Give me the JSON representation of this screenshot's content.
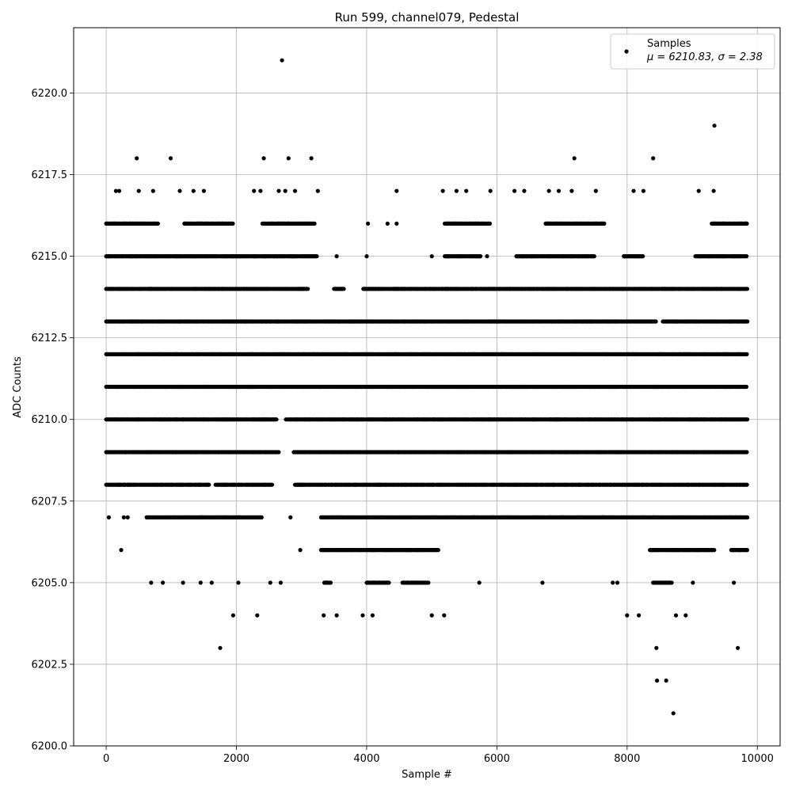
{
  "chart_data": {
    "type": "scatter",
    "title": "Run 599, channel079, Pedestal",
    "xlabel": "Sample #",
    "ylabel": "ADC Counts",
    "xlim": [
      -500,
      10350
    ],
    "ylim": [
      6200,
      6222
    ],
    "x_ticks": [
      0,
      2000,
      4000,
      6000,
      8000,
      10000
    ],
    "y_ticks": [
      6200.0,
      6202.5,
      6205.0,
      6207.5,
      6210.0,
      6212.5,
      6215.0,
      6217.5,
      6220.0
    ],
    "x_tick_labels": [
      "0",
      "2000",
      "4000",
      "6000",
      "8000",
      "10000"
    ],
    "y_tick_labels": [
      "6200.0",
      "6202.5",
      "6205.0",
      "6207.5",
      "6210.0",
      "6212.5",
      "6215.0",
      "6217.5",
      "6220.0"
    ],
    "grid": true,
    "legend": {
      "placement": "top-right",
      "entries": [
        {
          "label": "Samples",
          "stats": "μ = 6210.83, σ = 2.38"
        }
      ]
    },
    "series": [
      {
        "name": "Samples",
        "color": "#000000",
        "marker": "circle",
        "n_samples": 9850,
        "levels": [
          {
            "y": 6210,
            "ranges": [
              [
                0,
                2620
              ],
              [
                2760,
                9850
              ]
            ]
          },
          {
            "y": 6211,
            "ranges": [
              [
                0,
                9850
              ]
            ]
          },
          {
            "y": 6212,
            "ranges": [
              [
                0,
                9850
              ]
            ]
          },
          {
            "y": 6209,
            "ranges": [
              [
                0,
                2650
              ],
              [
                2880,
                9850
              ]
            ]
          },
          {
            "y": 6213,
            "ranges": [
              [
                0,
                8450
              ],
              [
                8550,
                9850
              ]
            ]
          },
          {
            "y": 6208,
            "ranges": [
              [
                0,
                1580
              ],
              [
                1680,
                2550
              ],
              [
                2900,
                9850
              ]
            ]
          },
          {
            "y": 6214,
            "ranges": [
              [
                0,
                3100
              ],
              [
                3500,
                3650
              ],
              [
                3950,
                9850
              ]
            ]
          },
          {
            "y": 6207,
            "ranges": [
              [
                620,
                2400
              ],
              [
                3300,
                9850
              ]
            ]
          },
          {
            "y": 6215,
            "ranges": [
              [
                0,
                3250
              ],
              [
                5200,
                5750
              ],
              [
                6300,
                7500
              ],
              [
                7950,
                8250
              ],
              [
                9050,
                9850
              ]
            ]
          },
          {
            "y": 6206,
            "ranges": [
              [
                3300,
                5100
              ],
              [
                8350,
                9350
              ],
              [
                9600,
                9850
              ]
            ]
          },
          {
            "y": 6216,
            "ranges": [
              [
                0,
                800
              ],
              [
                1200,
                1950
              ],
              [
                2400,
                3200
              ],
              [
                5200,
                5900
              ],
              [
                6750,
                7650
              ],
              [
                9300,
                9850
              ]
            ]
          },
          {
            "y": 6205,
            "ranges": [
              [
                3350,
                3450
              ],
              [
                4000,
                4350
              ],
              [
                4550,
                4950
              ],
              [
                8400,
                8700
              ]
            ]
          }
        ],
        "points": [
          [
            40,
            6207
          ],
          [
            230,
            6206
          ],
          [
            330,
            6207
          ],
          [
            270,
            6207
          ],
          [
            690,
            6205
          ],
          [
            870,
            6205
          ],
          [
            1180,
            6205
          ],
          [
            1450,
            6205
          ],
          [
            1620,
            6205
          ],
          [
            1750,
            6203
          ],
          [
            1950,
            6204
          ],
          [
            2030,
            6205
          ],
          [
            2320,
            6204
          ],
          [
            2520,
            6205
          ],
          [
            2680,
            6205
          ],
          [
            2830,
            6207
          ],
          [
            2980,
            6206
          ],
          [
            3340,
            6204
          ],
          [
            3540,
            6204
          ],
          [
            3940,
            6204
          ],
          [
            4090,
            6204
          ],
          [
            5000,
            6204
          ],
          [
            5190,
            6204
          ],
          [
            5730,
            6205
          ],
          [
            6700,
            6205
          ],
          [
            7780,
            6205
          ],
          [
            7850,
            6205
          ],
          [
            8000,
            6204
          ],
          [
            8180,
            6204
          ],
          [
            8450,
            6203
          ],
          [
            8460,
            6202
          ],
          [
            8600,
            6202
          ],
          [
            8710,
            6201
          ],
          [
            8750,
            6204
          ],
          [
            8900,
            6204
          ],
          [
            9010,
            6205
          ],
          [
            9640,
            6205
          ],
          [
            9700,
            6203
          ],
          [
            2700,
            6221
          ],
          [
            9340,
            6219
          ],
          [
            470,
            6218
          ],
          [
            990,
            6218
          ],
          [
            2420,
            6218
          ],
          [
            2800,
            6218
          ],
          [
            3150,
            6218
          ],
          [
            7190,
            6218
          ],
          [
            8400,
            6218
          ],
          [
            150,
            6217
          ],
          [
            200,
            6217
          ],
          [
            500,
            6217
          ],
          [
            720,
            6217
          ],
          [
            1130,
            6217
          ],
          [
            1340,
            6217
          ],
          [
            1500,
            6217
          ],
          [
            2270,
            6217
          ],
          [
            2370,
            6217
          ],
          [
            2650,
            6217
          ],
          [
            2750,
            6217
          ],
          [
            2900,
            6217
          ],
          [
            3250,
            6217
          ],
          [
            4460,
            6217
          ],
          [
            5170,
            6217
          ],
          [
            5380,
            6217
          ],
          [
            5530,
            6217
          ],
          [
            5900,
            6217
          ],
          [
            6270,
            6217
          ],
          [
            6420,
            6217
          ],
          [
            6800,
            6217
          ],
          [
            6950,
            6217
          ],
          [
            7150,
            6217
          ],
          [
            7520,
            6217
          ],
          [
            8100,
            6217
          ],
          [
            8250,
            6217
          ],
          [
            9100,
            6217
          ],
          [
            9330,
            6217
          ],
          [
            5000,
            6215
          ],
          [
            4000,
            6215
          ],
          [
            3540,
            6215
          ],
          [
            5850,
            6215
          ],
          [
            4020,
            6216
          ],
          [
            4320,
            6216
          ],
          [
            4460,
            6216
          ],
          [
            9820,
            6216
          ]
        ]
      }
    ]
  }
}
